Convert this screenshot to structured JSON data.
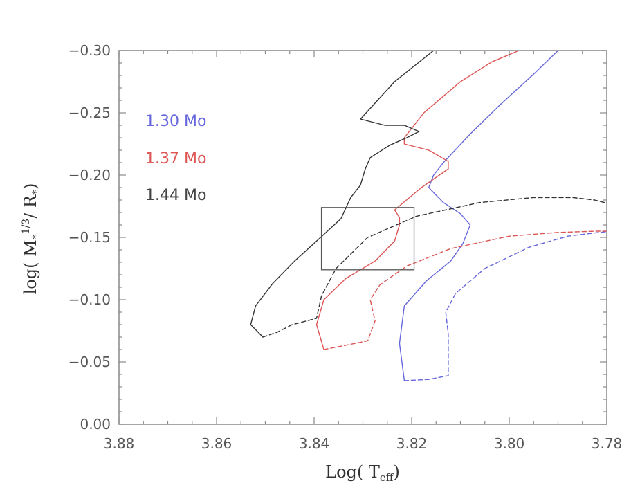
{
  "chart_data": {
    "type": "line",
    "title": "",
    "xlabel": "Log( T",
    "xlabel_sub": "eff",
    "xlabel_close": ")",
    "ylabel": "log( M",
    "ylabel_sub1": "*",
    "ylabel_sup": "1/3",
    "ylabel_mid": "/ R",
    "ylabel_sub2": "*",
    "ylabel_close": ")",
    "xlim": [
      3.88,
      3.78
    ],
    "ylim": [
      0.0,
      -0.3
    ],
    "x_ticks": [
      3.88,
      3.86,
      3.84,
      3.82,
      3.8,
      3.78
    ],
    "x_tick_labels": [
      "3.88",
      "3.86",
      "3.84",
      "3.82",
      "3.80",
      "3.78"
    ],
    "y_ticks": [
      0.0,
      -0.05,
      -0.1,
      -0.15,
      -0.2,
      -0.25,
      -0.3
    ],
    "y_tick_labels": [
      "0.00",
      "−0.05",
      "−0.10",
      "−0.15",
      "−0.20",
      "−0.25",
      "−0.30"
    ],
    "grid": false,
    "legend_position": "top-left",
    "series": [
      {
        "name": "1.30 Mo",
        "color": "#6666dd",
        "style": "solid",
        "x": [
          3.8215,
          3.8225,
          3.8215,
          3.817,
          3.812,
          3.8095,
          3.808,
          3.81,
          3.8135,
          3.8155,
          3.8165,
          3.8155,
          3.8135,
          3.808,
          3.802,
          3.795,
          3.79
        ],
        "y": [
          -0.035,
          -0.065,
          -0.095,
          -0.115,
          -0.131,
          -0.145,
          -0.16,
          -0.169,
          -0.178,
          -0.186,
          -0.19,
          -0.2,
          -0.21,
          -0.233,
          -0.256,
          -0.281,
          -0.3
        ]
      },
      {
        "name": "1.30 Mo dashed",
        "color": "#6666dd",
        "style": "dashed",
        "x": [
          3.8215,
          3.8165,
          3.8125,
          3.8125,
          3.8125,
          3.813,
          3.811,
          3.805,
          3.796,
          3.788,
          3.7815,
          3.779
        ],
        "y": [
          -0.035,
          -0.036,
          -0.039,
          -0.05,
          -0.072,
          -0.09,
          -0.105,
          -0.125,
          -0.142,
          -0.151,
          -0.154,
          -0.155
        ]
      },
      {
        "name": "1.37 Mo",
        "color": "#dd5555",
        "style": "solid",
        "x": [
          3.838,
          3.8395,
          3.838,
          3.8335,
          3.8275,
          3.8235,
          3.8225,
          3.8225,
          3.8235,
          3.818,
          3.8125,
          3.8125,
          3.8165,
          3.8215,
          3.8215,
          3.8175,
          3.81,
          3.8035,
          3.798
        ],
        "y": [
          -0.06,
          -0.08,
          -0.1,
          -0.117,
          -0.131,
          -0.147,
          -0.16,
          -0.166,
          -0.172,
          -0.19,
          -0.205,
          -0.211,
          -0.22,
          -0.225,
          -0.23,
          -0.25,
          -0.275,
          -0.291,
          -0.3
        ]
      },
      {
        "name": "1.37 Mo dashed",
        "color": "#dd5555",
        "style": "dashed",
        "x": [
          3.838,
          3.834,
          3.829,
          3.8275,
          3.8285,
          3.8265,
          3.821,
          3.812,
          3.8,
          3.79,
          3.782,
          3.779
        ],
        "y": [
          -0.06,
          -0.063,
          -0.067,
          -0.083,
          -0.1,
          -0.112,
          -0.127,
          -0.141,
          -0.151,
          -0.154,
          -0.155,
          -0.155
        ]
      },
      {
        "name": "1.44 Mo",
        "color": "#333333",
        "style": "solid",
        "x": [
          3.8505,
          3.853,
          3.852,
          3.8485,
          3.844,
          3.8395,
          3.8345,
          3.8325,
          3.8305,
          3.8295,
          3.8285,
          3.8245,
          3.821,
          3.8185,
          3.8215,
          3.8255,
          3.8305,
          3.8235,
          3.8155
        ],
        "y": [
          -0.07,
          -0.08,
          -0.095,
          -0.113,
          -0.131,
          -0.147,
          -0.165,
          -0.182,
          -0.192,
          -0.205,
          -0.214,
          -0.224,
          -0.23,
          -0.235,
          -0.24,
          -0.24,
          -0.245,
          -0.275,
          -0.3
        ]
      },
      {
        "name": "1.44 Mo dashed",
        "color": "#333333",
        "style": "dashed",
        "x": [
          3.8505,
          3.8475,
          3.8445,
          3.8395,
          3.8385,
          3.8355,
          3.829,
          3.819,
          3.806,
          3.795,
          3.787,
          3.7825,
          3.7795
        ],
        "y": [
          -0.07,
          -0.074,
          -0.08,
          -0.085,
          -0.103,
          -0.125,
          -0.15,
          -0.167,
          -0.178,
          -0.182,
          -0.182,
          -0.18,
          -0.177
        ]
      }
    ],
    "legend": [
      {
        "label": "1.30 Mo",
        "color": "#6666dd"
      },
      {
        "label": "1.37 Mo",
        "color": "#dd5555"
      },
      {
        "label": "1.44 Mo",
        "color": "#444444"
      }
    ],
    "annotation_box": {
      "x": [
        3.8385,
        3.8195
      ],
      "y": [
        -0.124,
        -0.174
      ],
      "color": "#555555"
    }
  }
}
